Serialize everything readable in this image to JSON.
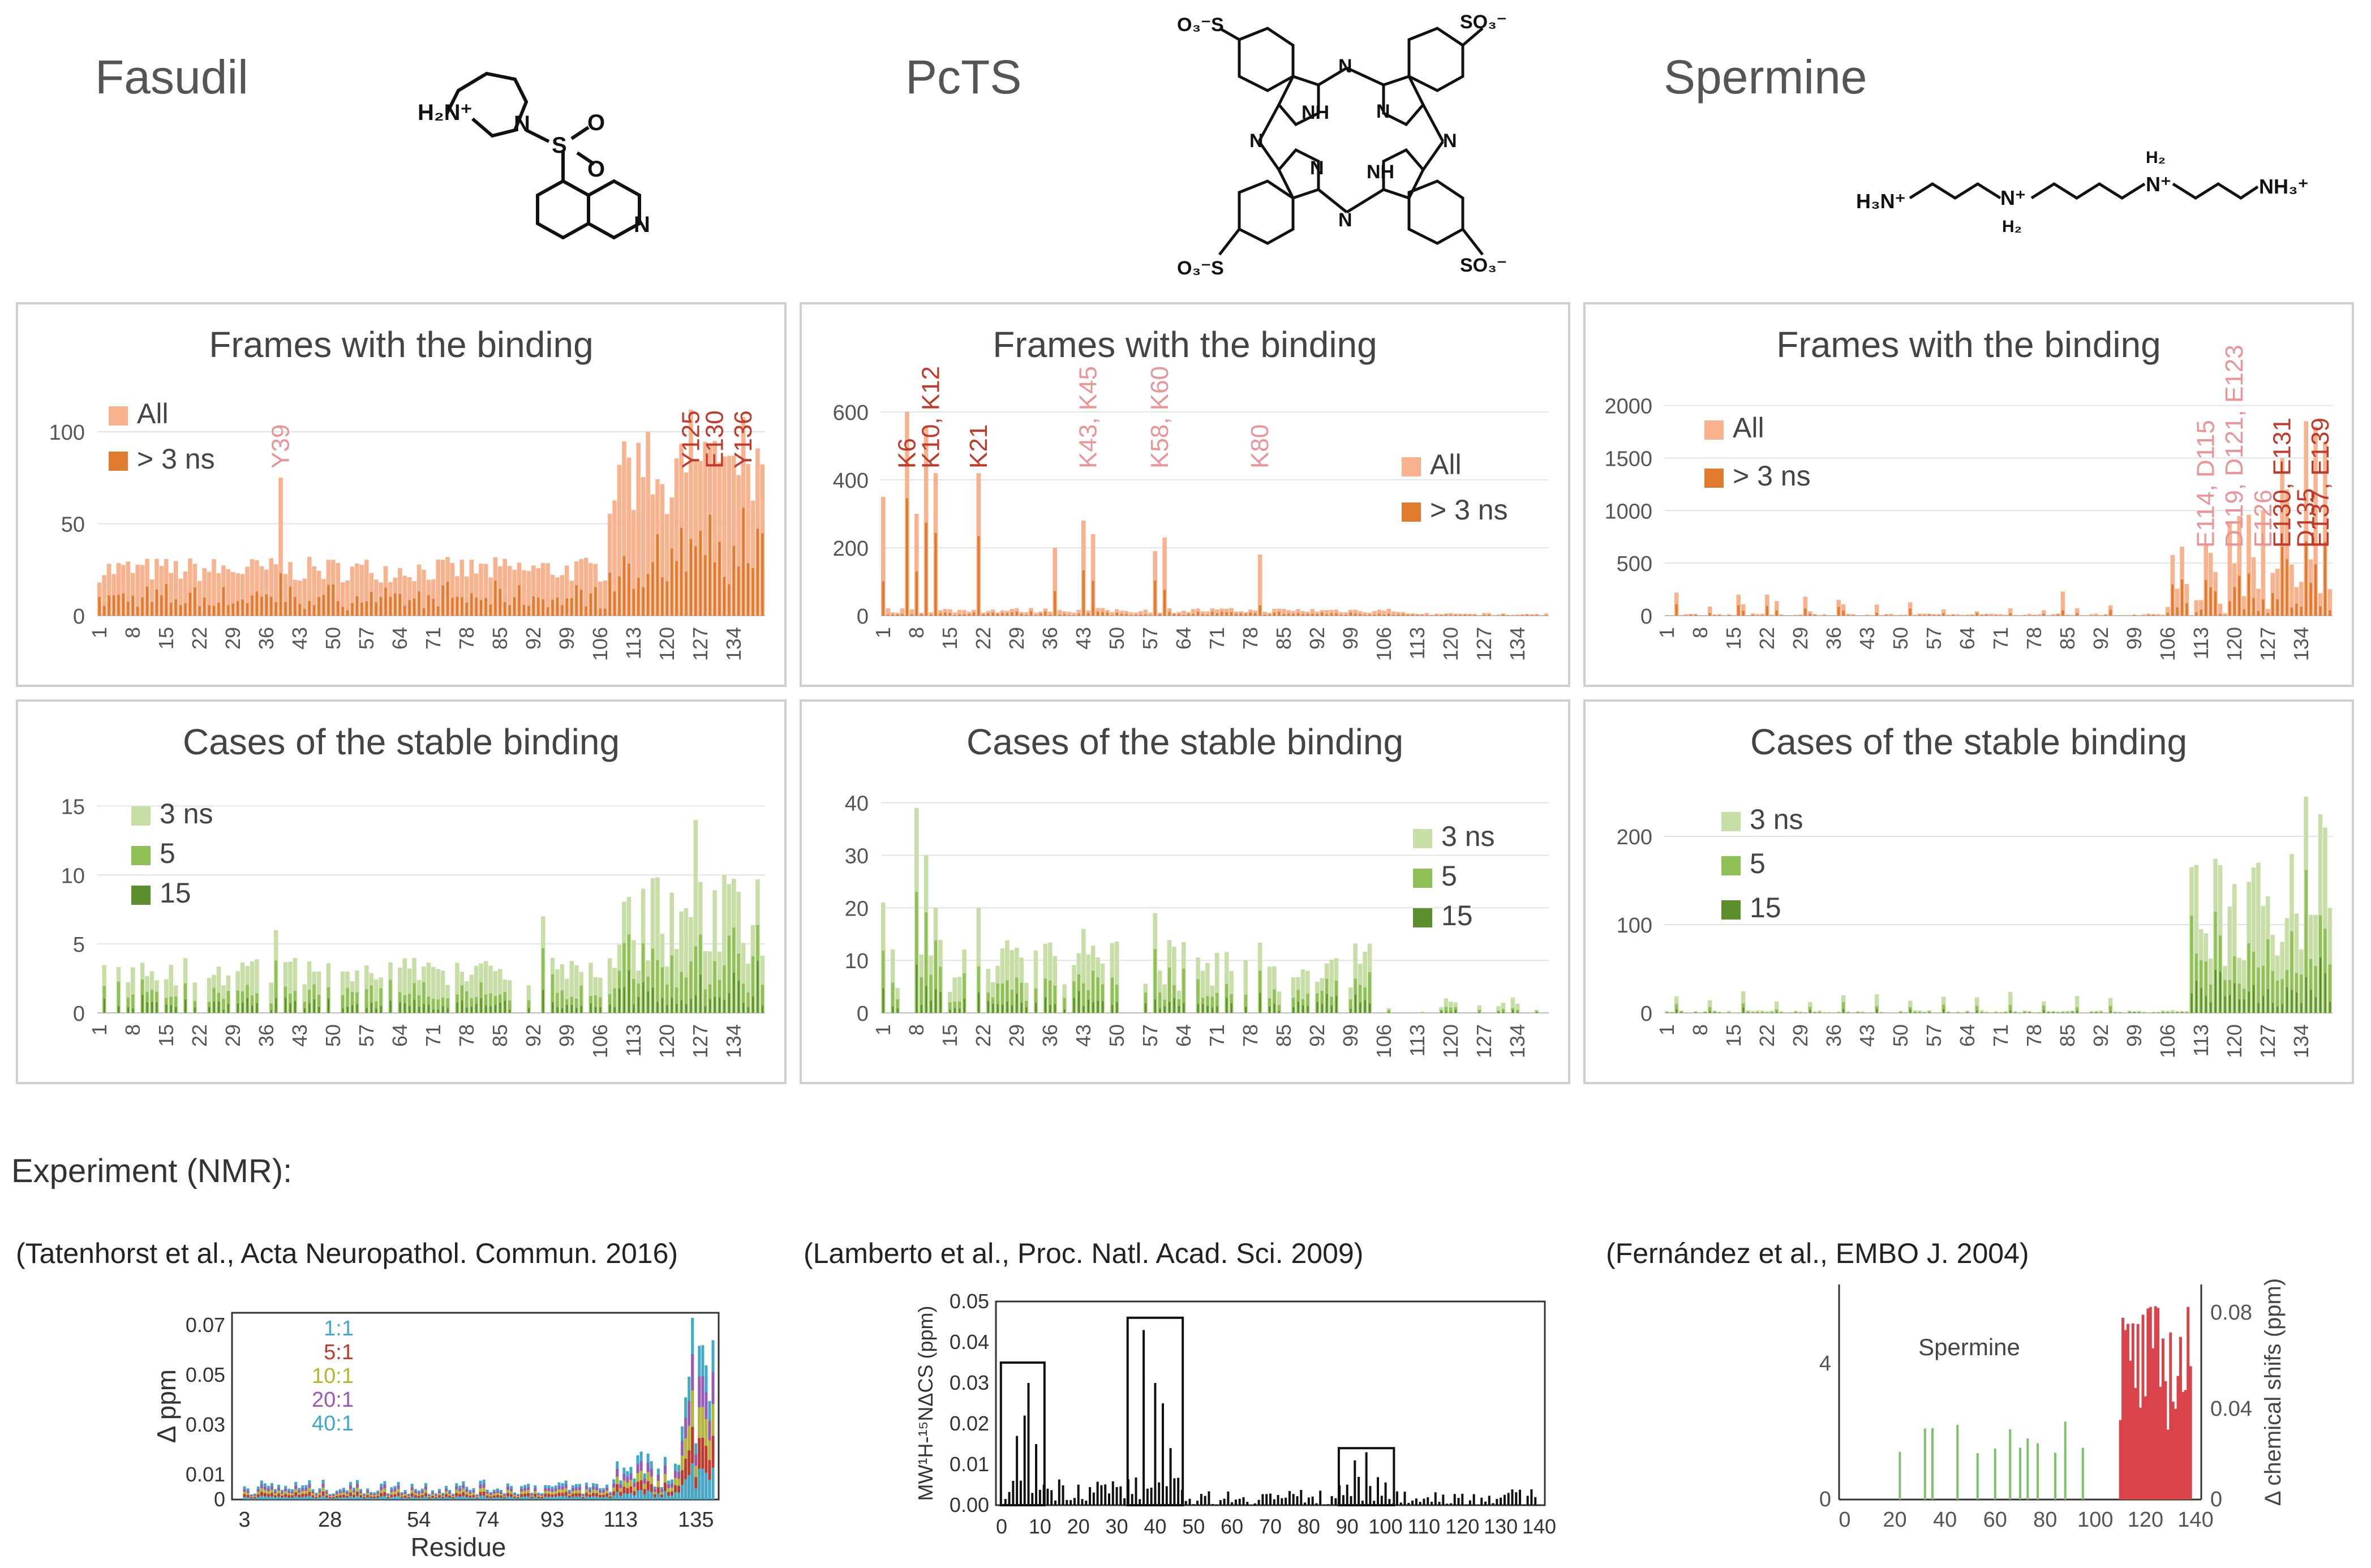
{
  "compounds": [
    {
      "name": "Fasudil"
    },
    {
      "name": "PcTS"
    },
    {
      "name": "Spermine"
    }
  ],
  "panels": {
    "frames_title": "Frames with the binding",
    "cases_title": "Cases of the stable binding"
  },
  "x_ticks": [
    "1",
    "8",
    "15",
    "22",
    "29",
    "36",
    "43",
    "50",
    "57",
    "64",
    "71",
    "78",
    "85",
    "92",
    "99",
    "106",
    "113",
    "120",
    "127",
    "134"
  ],
  "colors": {
    "all": "#f8b38e",
    "gt3ns": "#e07b2e",
    "label_light": "#e99497",
    "label_dark": "#c0392b",
    "ns3": "#c8dea7",
    "ns5": "#8fc056",
    "ns15": "#5b8f2c"
  },
  "chart_data": [
    {
      "type": "bar",
      "compound": "Fasudil",
      "title": "Frames with the binding",
      "series": [
        {
          "name": "All"
        },
        {
          "name": "> 3 ns"
        }
      ],
      "ylim": [
        0,
        120
      ],
      "yticks": [
        "0",
        "50",
        "100"
      ],
      "annotations": [
        {
          "text": "Y39",
          "residue": 39,
          "style": "light"
        },
        {
          "text": "Y125",
          "residue": 125,
          "style": "dark"
        },
        {
          "text": "E130",
          "residue": 130,
          "style": "dark"
        },
        {
          "text": "Y136",
          "residue": 136,
          "style": "dark"
        }
      ]
    },
    {
      "type": "bar",
      "compound": "PcTS",
      "title": "Frames with the binding",
      "series": [
        {
          "name": "All"
        },
        {
          "name": "> 3 ns"
        }
      ],
      "ylim": [
        0,
        650
      ],
      "yticks": [
        "0",
        "200",
        "400",
        "600"
      ],
      "annotations": [
        {
          "text": "K6",
          "residue": 6,
          "style": "dark"
        },
        {
          "text": "K10, K12",
          "residue": 11,
          "style": "dark"
        },
        {
          "text": "K21",
          "residue": 21,
          "style": "dark"
        },
        {
          "text": "K43, K45",
          "residue": 44,
          "style": "light"
        },
        {
          "text": "K58, K60",
          "residue": 59,
          "style": "light"
        },
        {
          "text": "K80",
          "residue": 80,
          "style": "light"
        }
      ]
    },
    {
      "type": "bar",
      "compound": "Spermine",
      "title": "Frames with the binding",
      "series": [
        {
          "name": "All"
        },
        {
          "name": "> 3 ns"
        }
      ],
      "ylim": [
        0,
        2100
      ],
      "yticks": [
        "0",
        "500",
        "1000",
        "1500",
        "2000"
      ],
      "annotations": [
        {
          "text": "E114, D115",
          "residue": 114,
          "style": "light"
        },
        {
          "text": "D119, D121, E123",
          "residue": 120,
          "style": "light"
        },
        {
          "text": "E126",
          "residue": 126,
          "style": "light"
        },
        {
          "text": "E130, E131",
          "residue": 130,
          "style": "dark"
        },
        {
          "text": "D135",
          "residue": 135,
          "style": "dark"
        },
        {
          "text": "E137, E139",
          "residue": 138,
          "style": "dark"
        }
      ]
    },
    {
      "type": "bar",
      "compound": "Fasudil",
      "title": "Cases of the stable binding",
      "series": [
        {
          "name": "3 ns"
        },
        {
          "name": "5"
        },
        {
          "name": "15"
        }
      ],
      "ylim": [
        0,
        16
      ],
      "yticks": [
        "0",
        "5",
        "10",
        "15"
      ]
    },
    {
      "type": "bar",
      "compound": "PcTS",
      "title": "Cases of the stable binding",
      "series": [
        {
          "name": "3 ns"
        },
        {
          "name": "5"
        },
        {
          "name": "15"
        }
      ],
      "ylim": [
        0,
        42
      ],
      "yticks": [
        "0",
        "10",
        "20",
        "30",
        "40"
      ]
    },
    {
      "type": "bar",
      "compound": "Spermine",
      "title": "Cases of the stable binding",
      "series": [
        {
          "name": "3  ns"
        },
        {
          "name": "5"
        },
        {
          "name": "15"
        }
      ],
      "ylim": [
        0,
        250
      ],
      "yticks": [
        "0",
        "100",
        "200"
      ]
    },
    {
      "type": "bar",
      "compound": "Fasudil",
      "title": "",
      "xlabel": "Residue",
      "ylabel": "Δ ppm",
      "series": [
        {
          "name": "1:1"
        },
        {
          "name": "5:1"
        },
        {
          "name": "10:1"
        },
        {
          "name": "20:1"
        },
        {
          "name": "40:1"
        }
      ],
      "xticks": [
        "3",
        "28",
        "54",
        "74",
        "93",
        "113",
        "135"
      ],
      "yticks": [
        "0",
        "0.01",
        "0.03",
        "0.05",
        "0.07"
      ],
      "ylim": [
        0,
        0.075
      ]
    },
    {
      "type": "bar",
      "compound": "PcTS",
      "title": "",
      "ylabel": "MW¹H-¹⁵NΔCS (ppm)",
      "xticks": [
        "0",
        "10",
        "20",
        "30",
        "40",
        "50",
        "60",
        "70",
        "80",
        "90",
        "100",
        "110",
        "120",
        "130",
        "140"
      ],
      "yticks": [
        "0.00",
        "0.01",
        "0.02",
        "0.03",
        "0.04",
        "0.05"
      ],
      "ylim": [
        0,
        0.05
      ]
    },
    {
      "type": "bar",
      "compound": "Spermine",
      "title": "Spermine",
      "ylabel": "Δ chemical shifs (ppm)",
      "xticks": [
        "0",
        "20",
        "40",
        "60",
        "80",
        "100",
        "120",
        "140"
      ],
      "yticks_left": [
        "0",
        "4"
      ],
      "yticks_right": [
        "0",
        "0.04",
        "0.08"
      ]
    }
  ],
  "nmr": {
    "section_label": "Experiment (NMR):",
    "citations": [
      "(Tatenhorst et al., Acta Neuropathol. Commun. 2016)",
      "(Lamberto et al., Proc. Natl. Acad. Sci. 2009)",
      "(Fernández et al., EMBO J. 2004)"
    ],
    "ratio_colors": [
      "#3ea9c9",
      "#c0392b",
      "#b5b531",
      "#9b59b6",
      "#3ea9c9"
    ],
    "spermine_label": "Spermine"
  },
  "molecules": {
    "fasudil": {
      "h2n": "H₂N⁺",
      "n": "N",
      "s": "S",
      "o1": "O",
      "o2": "O",
      "n2": "N"
    },
    "pcts": {
      "so3": "SO₃⁻",
      "o3s": "O₃⁻S",
      "nh": "NH",
      "n": "N"
    },
    "spermine": {
      "h3n": "H₃N⁺",
      "n1": "N⁺",
      "h2a": "H₂",
      "n2": "N⁺",
      "h2b": "H₂",
      "nh3": "NH₃⁺"
    }
  }
}
